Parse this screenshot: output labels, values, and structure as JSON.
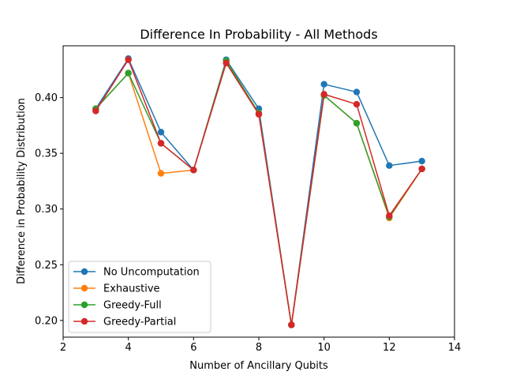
{
  "chart_data": {
    "type": "line",
    "title": "Difference In Probability - All Methods",
    "xlabel": "Number of Ancillary Qubits",
    "ylabel": "Difference in Probability Distribution",
    "xlim": [
      2,
      14
    ],
    "ylim": [
      0.185,
      0.4465
    ],
    "xticks": [
      2,
      4,
      6,
      8,
      10,
      12,
      14
    ],
    "yticks": [
      0.2,
      0.25,
      0.3,
      0.35,
      0.4
    ],
    "ytick_labels": [
      "0.20",
      "0.25",
      "0.30",
      "0.35",
      "0.40"
    ],
    "grid": false,
    "legend_position": "lower-left",
    "x": [
      3,
      4,
      5,
      6,
      7,
      8,
      9,
      10,
      11,
      12,
      13
    ],
    "series": [
      {
        "name": "No Uncomputation",
        "color": "#1f77b4",
        "values": [
          0.39,
          0.435,
          0.369,
          0.335,
          0.434,
          0.39,
          0.196,
          0.412,
          0.405,
          0.339,
          0.343
        ]
      },
      {
        "name": "Exhaustive",
        "color": "#ff7f0e",
        "values": [
          0.39,
          0.422,
          0.332,
          0.335,
          0.433,
          0.386,
          0.196,
          0.402,
          0.377,
          0.292,
          0.336
        ]
      },
      {
        "name": "Greedy-Full",
        "color": "#2ca02c",
        "values": [
          0.39,
          0.422,
          0.359,
          0.335,
          0.433,
          0.386,
          0.196,
          0.402,
          0.377,
          0.293,
          0.336
        ]
      },
      {
        "name": "Greedy-Partial",
        "color": "#d62728",
        "values": [
          0.388,
          0.434,
          0.359,
          0.335,
          0.431,
          0.385,
          0.196,
          0.403,
          0.394,
          0.294,
          0.336
        ]
      }
    ]
  }
}
